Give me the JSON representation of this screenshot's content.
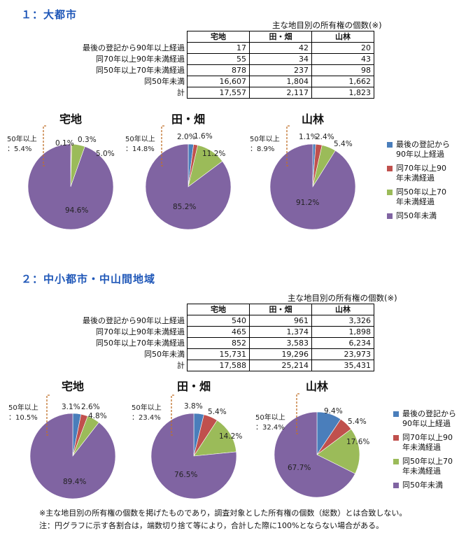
{
  "sections": [
    {
      "title": "１：大都市",
      "table_caption": "主な地目別の所有権の個数(※)",
      "columns": [
        "宅地",
        "田・畑",
        "山林"
      ],
      "rows": [
        {
          "label": "最後の登記から90年以上経過",
          "values": [
            "17",
            "42",
            "20"
          ]
        },
        {
          "label": "同70年以上90年未満経過",
          "values": [
            "55",
            "34",
            "43"
          ]
        },
        {
          "label": "同50年以上70年未満経過",
          "values": [
            "878",
            "237",
            "98"
          ]
        },
        {
          "label": "同50年未満",
          "values": [
            "16,607",
            "1,804",
            "1,662"
          ]
        },
        {
          "label": "計",
          "values": [
            "17,557",
            "2,117",
            "1,823"
          ]
        }
      ]
    },
    {
      "title": "２：中小都市・中山間地域",
      "table_caption": "主な地目別の所有権の個数(※)",
      "columns": [
        "宅地",
        "田・畑",
        "山林"
      ],
      "rows": [
        {
          "label": "最後の登記から90年以上経過",
          "values": [
            "540",
            "961",
            "3,326"
          ]
        },
        {
          "label": "同70年以上90年未満経過",
          "values": [
            "465",
            "1,374",
            "1,898"
          ]
        },
        {
          "label": "同50年以上70年未満経過",
          "values": [
            "852",
            "3,583",
            "6,234"
          ]
        },
        {
          "label": "同50年未満",
          "values": [
            "15,731",
            "19,296",
            "23,973"
          ]
        },
        {
          "label": "計",
          "values": [
            "17,588",
            "25,214",
            "35,431"
          ]
        }
      ]
    }
  ],
  "legend": [
    {
      "label1": "最後の登記から",
      "label2": "90年以上経過",
      "color": "#4a7ebb"
    },
    {
      "label1": "同70年以上90",
      "label2": "年未満経過",
      "color": "#c0504d"
    },
    {
      "label1": "同50年以上70",
      "label2": "年未満経過",
      "color": "#9bbb59"
    },
    {
      "label1": "同50年未満",
      "label2": "",
      "color": "#8064a2"
    }
  ],
  "chart_data": [
    {
      "type": "pie",
      "title": "宅地",
      "bracket_label1": "50年以上",
      "bracket_label2": "：5.4%",
      "values": [
        0.1,
        0.3,
        5.0,
        94.6
      ],
      "labels": [
        "0.1%",
        "0.3%",
        "5.0%",
        "94.6%"
      ]
    },
    {
      "type": "pie",
      "title": "田・畑",
      "bracket_label1": "50年以上",
      "bracket_label2": "：14.8%",
      "values": [
        2.0,
        1.6,
        11.2,
        85.2
      ],
      "labels": [
        "2.0%",
        "1.6%",
        "11.2%",
        "85.2%"
      ]
    },
    {
      "type": "pie",
      "title": "山林",
      "bracket_label1": "50年以上",
      "bracket_label2": "：8.9%",
      "values": [
        1.1,
        2.4,
        5.4,
        91.2
      ],
      "labels": [
        "1.1%",
        "2.4%",
        "5.4%",
        "91.2%"
      ]
    },
    {
      "type": "pie",
      "title": "宅地",
      "bracket_label1": "50年以上",
      "bracket_label2": "：10.5%",
      "values": [
        3.1,
        2.6,
        4.8,
        89.4
      ],
      "labels": [
        "3.1%",
        "2.6%",
        "4.8%",
        "89.4%"
      ]
    },
    {
      "type": "pie",
      "title": "田・畑",
      "bracket_label1": "50年以上",
      "bracket_label2": "：23.4%",
      "values": [
        3.8,
        5.4,
        14.2,
        76.5
      ],
      "labels": [
        "3.8%",
        "5.4%",
        "14.2%",
        "76.5%"
      ]
    },
    {
      "type": "pie",
      "title": "山林",
      "bracket_label1": "50年以上",
      "bracket_label2": "：32.4%",
      "values": [
        9.4,
        5.4,
        17.6,
        67.7
      ],
      "labels": [
        "9.4%",
        "5.4%",
        "17.6%",
        "67.7%"
      ]
    }
  ],
  "notes": [
    "※主な地目別の所有権の個数を掲げたものであり，調査対象とした所有権の個数（総数）とは合致しない。",
    "注：円グラフに示す各割合は，端数切り捨て等により，合計した際に100%とならない場合がある。"
  ]
}
